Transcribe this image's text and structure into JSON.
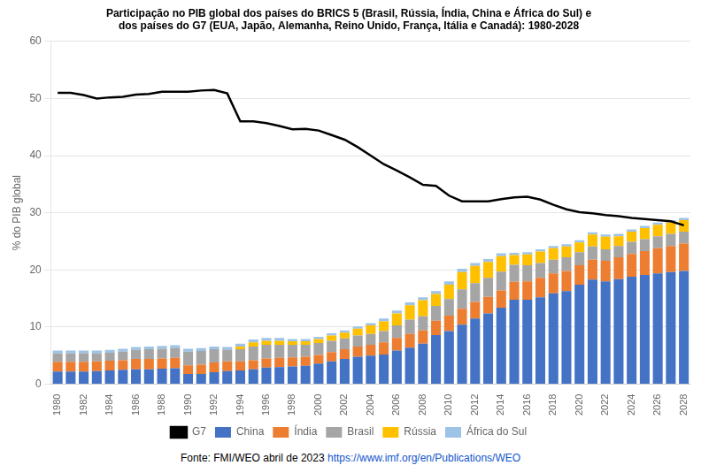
{
  "chart_data": {
    "type": "bar",
    "title": [
      "Participação no PIB global dos países do BRICS 5 (Brasil, Rússia, Índia, China e África do Sul) e",
      "dos países do G7 (EUA, Japão, Alemanha, Reino Unido, França, Itália e Canadá): 1980-2028"
    ],
    "ylabel": "% do PIB global",
    "annotations": [
      {
        "text": "Fonte: FMI/WEO abril de 2023",
        "color": "#000000"
      },
      {
        "text": "https://www.imf.org/en/Publications/WEO",
        "color": "#1155CC"
      }
    ],
    "categories": [
      "1980",
      null,
      "1982",
      null,
      "1984",
      null,
      "1986",
      null,
      "1988",
      null,
      "1990",
      null,
      "1992",
      null,
      "1994",
      null,
      "1996",
      null,
      "1998",
      null,
      "2000",
      null,
      "2002",
      null,
      "2004",
      null,
      "2006",
      null,
      "2008",
      null,
      "2010",
      null,
      "2012",
      null,
      "2014",
      null,
      "2016",
      null,
      "2018",
      null,
      "2020",
      null,
      "2022",
      null,
      "2024",
      null,
      "2026",
      null,
      "2028"
    ],
    "series": [
      {
        "name": "China",
        "color": "#4472C4",
        "values": [
          2.2,
          2.2,
          2.2,
          2.3,
          2.4,
          2.5,
          2.6,
          2.6,
          2.7,
          2.8,
          1.8,
          1.8,
          2.1,
          2.3,
          2.4,
          2.6,
          2.9,
          3.0,
          3.1,
          3.2,
          3.6,
          4.0,
          4.4,
          4.8,
          5.0,
          5.2,
          5.9,
          6.4,
          7.1,
          8.6,
          9.3,
          10.4,
          11.5,
          12.4,
          13.4,
          14.8,
          14.8,
          15.2,
          15.9,
          16.3,
          17.4,
          18.3,
          18.0,
          18.4,
          18.8,
          19.1,
          19.4,
          19.6,
          19.8
        ]
      },
      {
        "name": "Índia",
        "color": "#ED7D31",
        "values": [
          1.7,
          1.7,
          1.7,
          1.7,
          1.7,
          1.7,
          1.8,
          1.8,
          1.8,
          1.8,
          1.5,
          1.6,
          1.7,
          1.7,
          1.6,
          1.6,
          1.6,
          1.6,
          1.6,
          1.6,
          1.5,
          1.6,
          1.7,
          1.8,
          1.9,
          2.1,
          2.2,
          2.4,
          2.3,
          2.5,
          2.7,
          2.8,
          2.9,
          2.9,
          3.0,
          3.1,
          3.2,
          3.4,
          3.5,
          3.5,
          3.4,
          3.5,
          3.6,
          3.8,
          4.0,
          4.2,
          4.4,
          4.6,
          4.8
        ]
      },
      {
        "name": "Brasil",
        "color": "#A5A5A5",
        "values": [
          1.5,
          1.5,
          1.5,
          1.4,
          1.4,
          1.5,
          1.6,
          1.7,
          1.7,
          1.7,
          2.4,
          2.4,
          2.3,
          2.0,
          2.1,
          2.4,
          2.4,
          2.3,
          2.2,
          2.1,
          2.1,
          2.0,
          1.9,
          1.9,
          1.9,
          2.0,
          2.2,
          2.5,
          2.5,
          2.6,
          2.9,
          3.4,
          3.3,
          3.3,
          3.3,
          3.0,
          2.8,
          2.6,
          2.4,
          2.4,
          2.3,
          2.3,
          2.0,
          2.0,
          2.1,
          2.1,
          2.1,
          2.1,
          2.1
        ]
      },
      {
        "name": "Rússia",
        "color": "#FFC000",
        "values": [
          0.0,
          0.0,
          0.0,
          0.0,
          0.0,
          0.0,
          0.0,
          0.0,
          0.0,
          0.0,
          0.0,
          0.0,
          0.0,
          0.0,
          0.5,
          0.7,
          0.7,
          0.7,
          0.6,
          0.6,
          0.7,
          0.9,
          1.0,
          1.2,
          1.5,
          1.7,
          2.1,
          2.5,
          2.8,
          2.1,
          2.5,
          3.0,
          3.0,
          2.8,
          2.7,
          1.7,
          1.9,
          2.0,
          2.0,
          1.9,
          1.7,
          2.1,
          2.2,
          1.7,
          1.8,
          1.9,
          2.0,
          2.0,
          2.0
        ]
      },
      {
        "name": "África do Sul",
        "color": "#9DC3E6",
        "values": [
          0.5,
          0.5,
          0.5,
          0.5,
          0.5,
          0.5,
          0.5,
          0.5,
          0.5,
          0.5,
          0.5,
          0.5,
          0.5,
          0.5,
          0.5,
          0.5,
          0.5,
          0.5,
          0.4,
          0.4,
          0.4,
          0.4,
          0.4,
          0.4,
          0.4,
          0.5,
          0.5,
          0.5,
          0.5,
          0.5,
          0.6,
          0.6,
          0.5,
          0.5,
          0.5,
          0.4,
          0.4,
          0.4,
          0.4,
          0.4,
          0.4,
          0.4,
          0.4,
          0.4,
          0.4,
          0.4,
          0.4,
          0.4,
          0.4
        ]
      },
      {
        "name": "G7",
        "type": "line",
        "color": "#000000",
        "values": [
          51.0,
          51.0,
          50.6,
          50.0,
          50.2,
          50.3,
          50.7,
          50.8,
          51.2,
          51.2,
          51.2,
          51.4,
          51.5,
          50.9,
          46.0,
          46.0,
          45.7,
          45.2,
          44.6,
          44.7,
          44.4,
          43.6,
          42.8,
          41.5,
          40.0,
          38.5,
          37.4,
          36.2,
          34.9,
          34.7,
          33.0,
          32.0,
          32.0,
          32.0,
          32.4,
          32.7,
          32.8,
          32.3,
          31.4,
          30.6,
          30.1,
          29.9,
          29.6,
          29.4,
          29.1,
          28.9,
          28.7,
          28.5,
          27.8
        ]
      }
    ],
    "stacked": true,
    "ylim": [
      0,
      60
    ],
    "yticks": [
      0,
      10,
      20,
      30,
      40,
      50,
      60
    ],
    "grid": true,
    "legend": "bottom"
  }
}
